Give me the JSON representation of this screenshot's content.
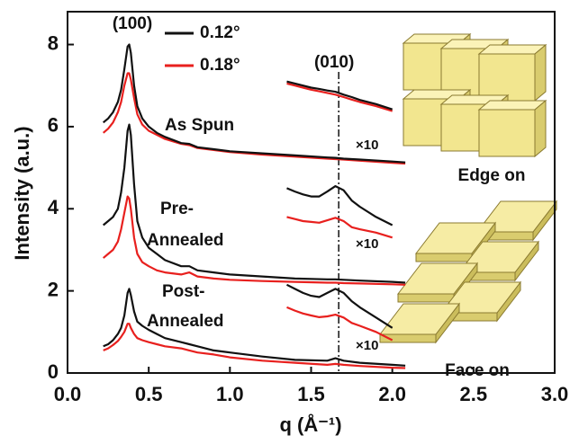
{
  "chart_data": {
    "type": "line",
    "x_label": "q (Å⁻¹)",
    "y_label": "Intensity (a.u.)",
    "xlim": [
      0,
      3
    ],
    "ylim": [
      0,
      8.8
    ],
    "xticks": [
      {
        "value": 0,
        "label": "0.0"
      },
      0.5,
      {
        "value": 1,
        "label": "1.0"
      },
      1.5,
      {
        "value": 2,
        "label": "2.0"
      },
      2.5,
      {
        "value": 3,
        "label": "3.0"
      }
    ],
    "yticks": [
      0,
      2,
      4,
      6,
      8
    ],
    "legend": [
      {
        "name": "0.12°",
        "color": "#111111"
      },
      {
        "name": "0.18°",
        "color": "#e8201e"
      }
    ],
    "peak_label": "(100)",
    "reference_line": {
      "x": 1.67,
      "label": "(010)"
    },
    "x": [
      0.22,
      0.25,
      0.28,
      0.31,
      0.33,
      0.35,
      0.37,
      0.38,
      0.39,
      0.41,
      0.43,
      0.46,
      0.5,
      0.55,
      0.6,
      0.7,
      0.75,
      0.8,
      0.9,
      1.0,
      1.2,
      1.4,
      1.6,
      1.65,
      1.7,
      1.8,
      2.0,
      2.08
    ],
    "inset_x": [
      1.35,
      1.4,
      1.45,
      1.5,
      1.55,
      1.6,
      1.65,
      1.7,
      1.75,
      1.8,
      1.9,
      2.0
    ],
    "samples": [
      {
        "label": [
          "As Spun"
        ],
        "inset_label": "×10",
        "curves": [
          [
            6.1,
            6.2,
            6.35,
            6.6,
            6.9,
            7.4,
            7.95,
            8.0,
            7.8,
            7.0,
            6.5,
            6.2,
            6.0,
            5.85,
            5.75,
            5.6,
            5.58,
            5.5,
            5.45,
            5.4,
            5.35,
            5.3,
            5.25,
            5.24,
            5.22,
            5.2,
            5.15,
            5.13
          ],
          [
            5.85,
            5.95,
            6.1,
            6.35,
            6.6,
            7.0,
            7.3,
            7.3,
            7.15,
            6.7,
            6.3,
            6.05,
            5.9,
            5.8,
            5.7,
            5.58,
            5.55,
            5.48,
            5.43,
            5.38,
            5.32,
            5.27,
            5.22,
            5.21,
            5.2,
            5.17,
            5.12,
            5.1
          ]
        ],
        "inset_curves": [
          [
            7.1,
            7.05,
            7.0,
            6.95,
            6.92,
            6.88,
            6.85,
            6.78,
            6.72,
            6.65,
            6.55,
            6.42
          ],
          [
            7.05,
            7.0,
            6.95,
            6.9,
            6.86,
            6.82,
            6.78,
            6.72,
            6.66,
            6.6,
            6.5,
            6.38
          ]
        ]
      },
      {
        "label": [
          "Pre-",
          "Annealed"
        ],
        "inset_label": "×10",
        "curves": [
          [
            3.6,
            3.7,
            3.8,
            4.0,
            4.4,
            5.0,
            5.9,
            6.05,
            5.8,
            4.6,
            3.7,
            3.3,
            3.05,
            2.9,
            2.75,
            2.6,
            2.6,
            2.5,
            2.45,
            2.4,
            2.35,
            2.3,
            2.28,
            2.28,
            2.27,
            2.25,
            2.22,
            2.2
          ],
          [
            2.8,
            2.9,
            3.0,
            3.2,
            3.5,
            3.9,
            4.3,
            4.25,
            4.0,
            3.3,
            2.9,
            2.7,
            2.6,
            2.5,
            2.45,
            2.4,
            2.45,
            2.35,
            2.3,
            2.27,
            2.24,
            2.22,
            2.2,
            2.2,
            2.19,
            2.18,
            2.16,
            2.15
          ]
        ],
        "inset_curves": [
          [
            4.5,
            4.42,
            4.35,
            4.3,
            4.3,
            4.42,
            4.55,
            4.45,
            4.2,
            4.05,
            3.8,
            3.6
          ],
          [
            3.8,
            3.75,
            3.7,
            3.68,
            3.66,
            3.72,
            3.78,
            3.7,
            3.55,
            3.5,
            3.42,
            3.3
          ]
        ]
      },
      {
        "label": [
          "Post-",
          "Annealed"
        ],
        "inset_label": "×10",
        "curves": [
          [
            0.65,
            0.7,
            0.8,
            0.95,
            1.1,
            1.4,
            1.95,
            2.05,
            1.9,
            1.5,
            1.25,
            1.15,
            1.05,
            0.95,
            0.85,
            0.75,
            0.7,
            0.65,
            0.55,
            0.5,
            0.4,
            0.32,
            0.3,
            0.36,
            0.3,
            0.25,
            0.2,
            0.18
          ],
          [
            0.55,
            0.6,
            0.68,
            0.78,
            0.88,
            1.0,
            1.2,
            1.2,
            1.1,
            0.95,
            0.85,
            0.8,
            0.75,
            0.7,
            0.65,
            0.6,
            0.55,
            0.5,
            0.45,
            0.38,
            0.3,
            0.25,
            0.2,
            0.22,
            0.2,
            0.17,
            0.13,
            0.12
          ]
        ],
        "inset_curves": [
          [
            2.15,
            2.05,
            1.95,
            1.88,
            1.85,
            1.95,
            2.05,
            1.95,
            1.75,
            1.6,
            1.35,
            1.1
          ],
          [
            1.6,
            1.52,
            1.45,
            1.4,
            1.36,
            1.38,
            1.42,
            1.35,
            1.22,
            1.15,
            1.0,
            0.8
          ]
        ]
      }
    ],
    "schematics": [
      "Edge on",
      "Face on"
    ]
  }
}
